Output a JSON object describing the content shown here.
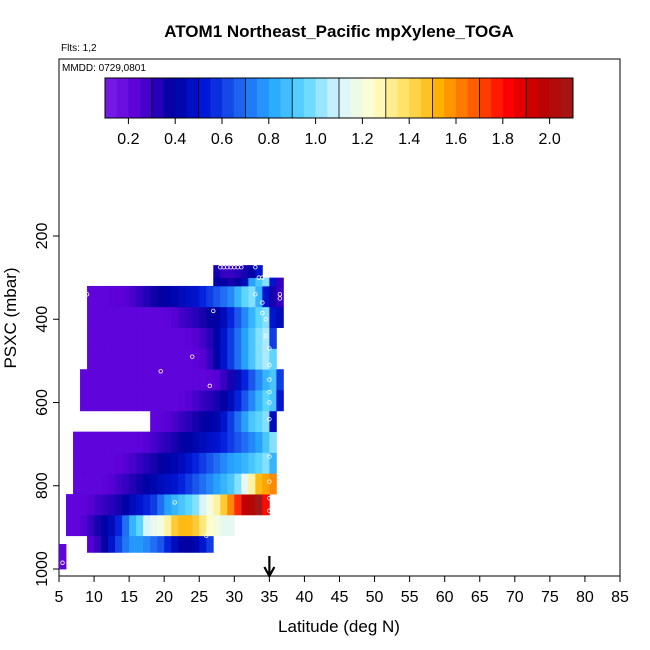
{
  "chart_data": {
    "type": "heatmap",
    "title": "ATOM1 Northeast_Pacific mpXylene_TOGA",
    "subtitle_flights": "Flts: 1,2",
    "subtitle_dates": "MMDD: 0729,0801",
    "xlabel": "Latitude (deg N)",
    "ylabel": "PSXC (mbar)",
    "xlim": [
      5,
      85
    ],
    "ylim": [
      1000,
      80
    ],
    "y_reversed": true,
    "x_ticks": [
      5,
      10,
      15,
      20,
      25,
      30,
      35,
      40,
      45,
      50,
      55,
      60,
      65,
      70,
      75,
      80,
      85
    ],
    "y_ticks": [
      200,
      400,
      600,
      800,
      1000
    ],
    "colorbar": {
      "range": [
        0.1,
        2.1
      ],
      "ticks": [
        0.2,
        0.4,
        0.6,
        0.8,
        1.0,
        1.2,
        1.4,
        1.6,
        1.8,
        2.0
      ],
      "tick_labels": [
        "0.2",
        "0.4",
        "0.6",
        "0.8",
        "1.0",
        "1.2",
        "1.4",
        "1.6",
        "1.8",
        "2.0"
      ],
      "stops": [
        "#7b1fe8",
        "#5a00d8",
        "#0000a0",
        "#0018d8",
        "#1e60f0",
        "#28a8ff",
        "#60d8ff",
        "#d8f4ff",
        "#ffffd0",
        "#ffe060",
        "#ffb000",
        "#ff6000",
        "#ff0000",
        "#c00000",
        "#a01818"
      ]
    },
    "latitude_marker": {
      "x": 35
    },
    "cell_width_deg": 1,
    "rows": [
      {
        "p1": 940,
        "p2": 1000,
        "lat_from": 5,
        "values": [
          0.22
        ]
      },
      {
        "p1": 920,
        "p2": 960,
        "lat_from": 9,
        "values": [
          0.25,
          0.3,
          0.38,
          0.5,
          0.62,
          0.72,
          0.78,
          0.78,
          0.75,
          0.7,
          0.65,
          0.55,
          0.45,
          0.4,
          0.38,
          0.42,
          0.5,
          0.6
        ]
      },
      {
        "p1": 870,
        "p2": 920,
        "lat_from": 6,
        "values": [
          0.22,
          0.22,
          0.25,
          0.3,
          0.35,
          0.4,
          0.45,
          0.55,
          0.7,
          0.85,
          0.95,
          1.1,
          1.15,
          1.2,
          1.3,
          1.45,
          1.5,
          1.5,
          1.45,
          1.35,
          1.25,
          1.2,
          1.15,
          1.15
        ]
      },
      {
        "p1": 820,
        "p2": 870,
        "lat_from": 6,
        "values": [
          0.22,
          0.22,
          0.23,
          0.25,
          0.28,
          0.3,
          0.32,
          0.35,
          0.4,
          0.45,
          0.5,
          0.55,
          0.6,
          0.7,
          0.8,
          0.85,
          0.9,
          0.95,
          1.0,
          1.1,
          1.2,
          1.3,
          1.45,
          1.6,
          1.75,
          1.95,
          2.0,
          2.1,
          1.8
        ]
      },
      {
        "p1": 770,
        "p2": 820,
        "lat_from": 7,
        "values": [
          0.22,
          0.22,
          0.22,
          0.22,
          0.23,
          0.25,
          0.28,
          0.3,
          0.33,
          0.36,
          0.4,
          0.42,
          0.45,
          0.48,
          0.5,
          0.55,
          0.6,
          0.65,
          0.7,
          0.75,
          0.8,
          0.85,
          0.9,
          1.0,
          1.15,
          1.3,
          1.5,
          1.55,
          1.6
        ]
      },
      {
        "p1": 720,
        "p2": 770,
        "lat_from": 7,
        "values": [
          0.22,
          0.22,
          0.22,
          0.22,
          0.22,
          0.22,
          0.23,
          0.25,
          0.27,
          0.3,
          0.32,
          0.35,
          0.38,
          0.4,
          0.42,
          0.45,
          0.5,
          0.55,
          0.6,
          0.65,
          0.7,
          0.75,
          0.8,
          0.82,
          0.85,
          0.9,
          0.95,
          1.0,
          0.85
        ]
      },
      {
        "p1": 670,
        "p2": 720,
        "lat_from": 7,
        "values": [
          0.22,
          0.22,
          0.22,
          0.22,
          0.22,
          0.22,
          0.22,
          0.22,
          0.22,
          0.23,
          0.25,
          0.27,
          0.3,
          0.32,
          0.35,
          0.38,
          0.4,
          0.42,
          0.45,
          0.48,
          0.5,
          0.55,
          0.6,
          0.65,
          0.7,
          0.75,
          0.8,
          0.9,
          1.0
        ]
      },
      {
        "p1": 620,
        "p2": 670,
        "lat_from": 18,
        "values": [
          0.22,
          0.23,
          0.25,
          0.27,
          0.3,
          0.32,
          0.35,
          0.38,
          0.4,
          0.42,
          0.5,
          0.6,
          0.7,
          0.8,
          0.9,
          0.95,
          1.0,
          0.45
        ]
      },
      {
        "p1": 570,
        "p2": 620,
        "lat_from": 8,
        "values": [
          0.22,
          0.22,
          0.22,
          0.22,
          0.22,
          0.22,
          0.22,
          0.22,
          0.22,
          0.22,
          0.22,
          0.22,
          0.22,
          0.22,
          0.23,
          0.25,
          0.27,
          0.3,
          0.32,
          0.35,
          0.38,
          0.45,
          0.55,
          0.65,
          0.75,
          0.85,
          0.95,
          0.9,
          0.5
        ]
      },
      {
        "p1": 520,
        "p2": 570,
        "lat_from": 8,
        "values": [
          0.22,
          0.22,
          0.22,
          0.22,
          0.22,
          0.22,
          0.22,
          0.22,
          0.22,
          0.22,
          0.22,
          0.22,
          0.22,
          0.22,
          0.22,
          0.22,
          0.22,
          0.22,
          0.23,
          0.25,
          0.3,
          0.35,
          0.45,
          0.55,
          0.65,
          0.75,
          0.85,
          0.9,
          0.6
        ]
      },
      {
        "p1": 470,
        "p2": 520,
        "lat_from": 9,
        "values": [
          0.22,
          0.22,
          0.22,
          0.22,
          0.22,
          0.22,
          0.22,
          0.22,
          0.22,
          0.22,
          0.22,
          0.22,
          0.22,
          0.22,
          0.22,
          0.23,
          0.25,
          0.3,
          0.4,
          0.5,
          0.6,
          0.7,
          0.8,
          0.9,
          1.0,
          1.05,
          0.95
        ]
      },
      {
        "p1": 420,
        "p2": 470,
        "lat_from": 9,
        "values": [
          0.22,
          0.22,
          0.22,
          0.22,
          0.22,
          0.22,
          0.22,
          0.22,
          0.22,
          0.22,
          0.22,
          0.22,
          0.22,
          0.22,
          0.23,
          0.25,
          0.28,
          0.32,
          0.4,
          0.5,
          0.6,
          0.7,
          0.8,
          0.9,
          1.0,
          1.05,
          0.6
        ]
      },
      {
        "p1": 370,
        "p2": 420,
        "lat_from": 9,
        "values": [
          0.22,
          0.22,
          0.22,
          0.22,
          0.22,
          0.22,
          0.22,
          0.22,
          0.22,
          0.22,
          0.22,
          0.23,
          0.25,
          0.28,
          0.3,
          0.32,
          0.35,
          0.38,
          0.4,
          0.45,
          0.55,
          0.65,
          0.75,
          0.85,
          0.95,
          1.0,
          0.5,
          0.45
        ]
      },
      {
        "p1": 320,
        "p2": 370,
        "lat_from": 9,
        "values": [
          0.22,
          0.22,
          0.22,
          0.23,
          0.24,
          0.25,
          0.27,
          0.3,
          0.33,
          0.36,
          0.38,
          0.4,
          0.42,
          0.45,
          0.48,
          0.5,
          0.55,
          0.6,
          0.65,
          0.7,
          0.75,
          0.85,
          0.95,
          1.0,
          0.85,
          0.5,
          0.35,
          0.3
        ]
      },
      {
        "p1": 300,
        "p2": 320,
        "lat_from": 27,
        "values": [
          0.4,
          0.38,
          0.35,
          0.38,
          0.45,
          0.8,
          0.9,
          1.0,
          0.5,
          0.3
        ]
      },
      {
        "p1": 270,
        "p2": 300,
        "lat_from": 27,
        "values": [
          0.35,
          0.3,
          0.3,
          0.32,
          0.35,
          0.4,
          0.5
        ]
      }
    ],
    "sample_points": [
      [
        5.5,
        985
      ],
      [
        9,
        340
      ],
      [
        19.5,
        525
      ],
      [
        21.5,
        840
      ],
      [
        24,
        490
      ],
      [
        26,
        920
      ],
      [
        26.5,
        560
      ],
      [
        27,
        380
      ],
      [
        28,
        275
      ],
      [
        28.5,
        275
      ],
      [
        29,
        275
      ],
      [
        29.5,
        275
      ],
      [
        30,
        275
      ],
      [
        30.5,
        275
      ],
      [
        31,
        275
      ],
      [
        33,
        275
      ],
      [
        33,
        340
      ],
      [
        33.5,
        300
      ],
      [
        34,
        360
      ],
      [
        34,
        385
      ],
      [
        34.5,
        400
      ],
      [
        34.5,
        440
      ],
      [
        35,
        470
      ],
      [
        35,
        510
      ],
      [
        35,
        545
      ],
      [
        35,
        575
      ],
      [
        35,
        600
      ],
      [
        35,
        640
      ],
      [
        35,
        730
      ],
      [
        35,
        790
      ],
      [
        35,
        830
      ],
      [
        35,
        860
      ],
      [
        36.5,
        340
      ],
      [
        36.5,
        350
      ],
      [
        34,
        300
      ]
    ]
  }
}
